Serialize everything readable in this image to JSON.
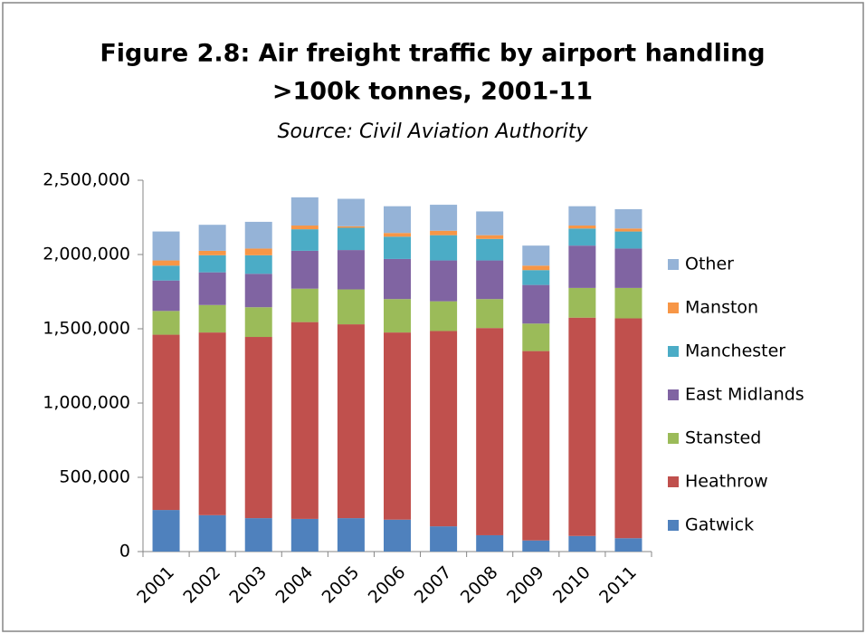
{
  "chart_data": {
    "type": "stacked_bar",
    "title": [
      "Figure 2.8:  Air freight traffic by airport handling",
      ">100k tonnes, 2001-11"
    ],
    "subtitle": "Source:  Civil Aviation Authority",
    "categories": [
      "2001",
      "2002",
      "2003",
      "2004",
      "2005",
      "2006",
      "2007",
      "2008",
      "2009",
      "2010",
      "2011"
    ],
    "series": [
      {
        "name": "Gatwick",
        "color": "#4f81bd",
        "values": [
          280000,
          245000,
          225000,
          220000,
          225000,
          215000,
          170000,
          110000,
          75000,
          105000,
          90000
        ]
      },
      {
        "name": "Heathrow",
        "color": "#c0504d",
        "values": [
          1180000,
          1230000,
          1220000,
          1325000,
          1305000,
          1260000,
          1315000,
          1395000,
          1275000,
          1470000,
          1480000
        ]
      },
      {
        "name": "Stansted",
        "color": "#9bbb59",
        "values": [
          160000,
          185000,
          200000,
          225000,
          235000,
          225000,
          200000,
          195000,
          185000,
          200000,
          205000
        ]
      },
      {
        "name": "East Midlands",
        "color": "#8064a2",
        "values": [
          205000,
          220000,
          225000,
          255000,
          265000,
          270000,
          275000,
          260000,
          260000,
          285000,
          265000
        ]
      },
      {
        "name": "Manchester",
        "color": "#4bacc6",
        "values": [
          100000,
          115000,
          125000,
          145000,
          150000,
          150000,
          170000,
          145000,
          100000,
          115000,
          115000
        ]
      },
      {
        "name": "Manston",
        "color": "#f79646",
        "values": [
          35000,
          30000,
          45000,
          25000,
          10000,
          25000,
          30000,
          25000,
          30000,
          20000,
          20000
        ]
      },
      {
        "name": "Other",
        "color": "#95b3d7",
        "values": [
          195000,
          175000,
          180000,
          190000,
          185000,
          180000,
          175000,
          160000,
          135000,
          130000,
          130000
        ]
      }
    ],
    "ylim": [
      0,
      2500000
    ],
    "yticks": [
      0,
      {
        "value": 500000,
        "label": "500,000"
      },
      {
        "value": 1000000,
        "label": "1,000,000"
      },
      {
        "value": 1500000,
        "label": "1,500,000"
      },
      {
        "value": 2000000,
        "label": "2,000,000"
      },
      {
        "value": 2500000,
        "label": "2,500,000"
      }
    ],
    "legend": "right"
  }
}
